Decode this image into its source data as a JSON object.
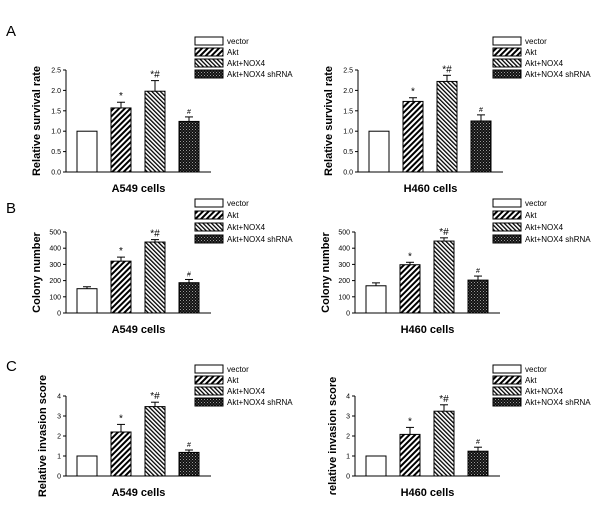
{
  "figure": {
    "panel_labels": [
      "A",
      "B",
      "C"
    ]
  },
  "legend_entries": [
    "vector",
    "Akt",
    "Akt+NOX4",
    "Akt+NOX4 shRNA"
  ],
  "chart_data": [
    {
      "type": "bar",
      "panel": "A",
      "cell_line": "A549",
      "categories": [
        "vector",
        "Akt",
        "Akt+NOX4",
        "Akt+NOX4 shRNA"
      ],
      "values": [
        1.0,
        1.57,
        1.98,
        1.24
      ],
      "errors": [
        0,
        0.14,
        0.26,
        0.11
      ],
      "annotations": [
        "",
        "*",
        "*#",
        "#"
      ],
      "ylabel": "Relative survival rate",
      "xlabel": "A549 cells",
      "ylim": [
        0,
        2.5
      ],
      "yticks": [
        "0.0",
        "0.5",
        "1.0",
        "1.5",
        "2.0",
        "2.5"
      ],
      "ytick_values": [
        0,
        0.5,
        1.0,
        1.5,
        2.0,
        2.5
      ],
      "legend": [
        "vector",
        "Akt",
        "Akt+NOX4",
        "Akt+NOX4 shRNA"
      ]
    },
    {
      "type": "bar",
      "panel": "A",
      "cell_line": "H460",
      "categories": [
        "vector",
        "Akt",
        "Akt+NOX4",
        "Akt+NOX4 shRNA"
      ],
      "values": [
        1.0,
        1.73,
        2.22,
        1.25
      ],
      "errors": [
        0,
        0.09,
        0.15,
        0.15
      ],
      "annotations": [
        "",
        "*",
        "*#",
        "#"
      ],
      "ylabel": "Relative survival rate",
      "xlabel": "H460 cells",
      "ylim": [
        0,
        2.5
      ],
      "yticks": [
        "0.0",
        "0.5",
        "1.0",
        "1.5",
        "2.0",
        "2.5"
      ],
      "ytick_values": [
        0,
        0.5,
        1.0,
        1.5,
        2.0,
        2.5
      ],
      "legend": [
        "vector",
        "Akt",
        "Akt+NOX4",
        "Akt+NOX4 shRNA"
      ]
    },
    {
      "type": "bar",
      "panel": "B",
      "cell_line": "A549",
      "categories": [
        "vector",
        "Akt",
        "Akt+NOX4",
        "Akt+NOX4 shRNA"
      ],
      "values": [
        150,
        320,
        438,
        187
      ],
      "errors": [
        12,
        25,
        15,
        20
      ],
      "annotations": [
        "",
        "*",
        "*#",
        "#"
      ],
      "ylabel": "Colony number",
      "xlabel": "A549 cells",
      "ylim": [
        0,
        500
      ],
      "yticks": [
        "0",
        "100",
        "200",
        "300",
        "400",
        "500"
      ],
      "ytick_values": [
        0,
        100,
        200,
        300,
        400,
        500
      ],
      "legend": [
        "vector",
        "Akt",
        "Akt+NOX4",
        "Akt+NOX4 shRNA"
      ]
    },
    {
      "type": "bar",
      "panel": "B",
      "cell_line": "H460",
      "categories": [
        "vector",
        "Akt",
        "Akt+NOX4",
        "Akt+NOX4 shRNA"
      ],
      "values": [
        168,
        298,
        444,
        203
      ],
      "errors": [
        18,
        15,
        20,
        25
      ],
      "annotations": [
        "",
        "*",
        "*#",
        "#"
      ],
      "ylabel": "Colony number",
      "xlabel": "H460 cells",
      "ylim": [
        0,
        500
      ],
      "yticks": [
        "0",
        "100",
        "200",
        "300",
        "400",
        "500"
      ],
      "ytick_values": [
        0,
        100,
        200,
        300,
        400,
        500
      ],
      "legend": [
        "vector",
        "Akt",
        "Akt+NOX4",
        "Akt+NOX4 shRNA"
      ]
    },
    {
      "type": "bar",
      "panel": "C",
      "cell_line": "A549",
      "categories": [
        "vector",
        "Akt",
        "Akt+NOX4",
        "Akt+NOX4 shRNA"
      ],
      "values": [
        1.0,
        2.2,
        3.47,
        1.18
      ],
      "errors": [
        0,
        0.38,
        0.22,
        0.12
      ],
      "annotations": [
        "",
        "*",
        "*#",
        "#"
      ],
      "ylabel": "Relative invasion score",
      "xlabel": "A549 cells",
      "ylim": [
        0,
        4
      ],
      "yticks": [
        "0",
        "1",
        "2",
        "3",
        "4"
      ],
      "ytick_values": [
        0,
        1,
        2,
        3,
        4
      ],
      "legend": [
        "vector",
        "Akt",
        "Akt+NOX4",
        "Akt+NOX4 shRNA"
      ]
    },
    {
      "type": "bar",
      "panel": "C",
      "cell_line": "H460",
      "categories": [
        "vector",
        "Akt",
        "Akt+NOX4",
        "Akt+NOX4 shRNA"
      ],
      "values": [
        1.0,
        2.08,
        3.24,
        1.24
      ],
      "errors": [
        0,
        0.35,
        0.32,
        0.2
      ],
      "annotations": [
        "",
        "*",
        "*#",
        "#"
      ],
      "ylabel": "ɾelative invasion score",
      "xlabel": "H460 cells",
      "ylim": [
        0,
        4
      ],
      "yticks": [
        "0",
        "1",
        "2",
        "3",
        "4"
      ],
      "ytick_values": [
        0,
        1,
        2,
        3,
        4
      ],
      "legend": [
        "vector",
        "Akt",
        "Akt+NOX4",
        "Akt+NOX4 shRNA"
      ]
    }
  ]
}
